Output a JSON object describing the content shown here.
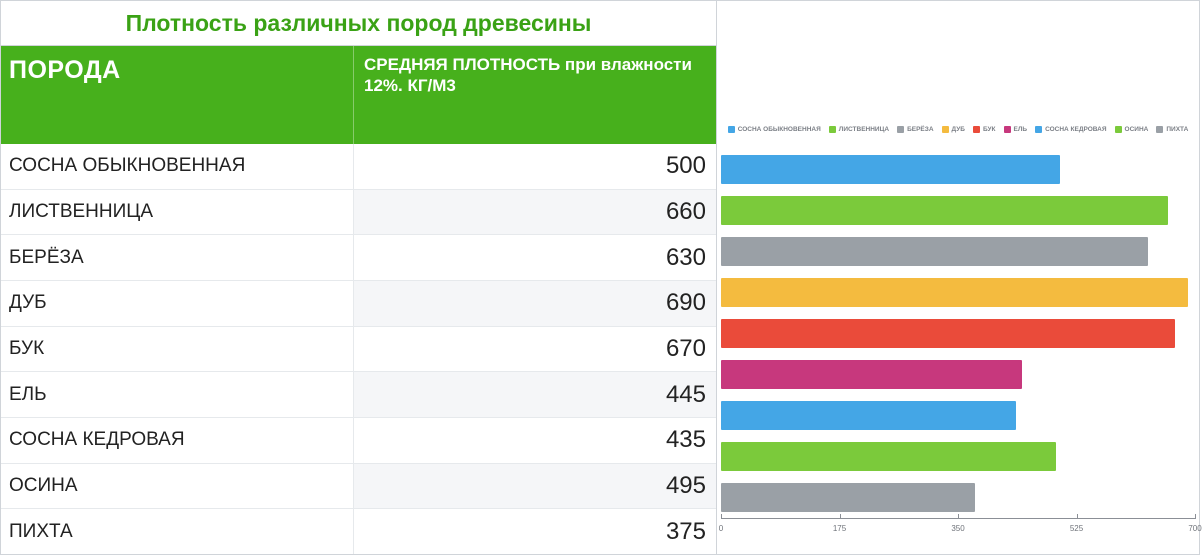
{
  "title": "Плотность различных пород древесины",
  "columns": {
    "c1": "ПОРОДА",
    "c2": "СРЕДНЯЯ ПЛОТНОСТЬ при влажности 12%. КГ/М3"
  },
  "colors": {
    "header_bg": "#47b01c",
    "header_fg": "#ffffff",
    "title_fg": "#3aa215",
    "grid": "#e6e9ec",
    "row_alt_bg": "#f5f6f8",
    "axis": "#8b8f96",
    "tick_label": "#6f737a"
  },
  "rows": [
    {
      "label": "СОСНА ОБЫКНОВЕННАЯ",
      "value": 500,
      "color": "#44a6e6"
    },
    {
      "label": "ЛИСТВЕННИЦА",
      "value": 660,
      "color": "#7bca3b"
    },
    {
      "label": "БЕРЁЗА",
      "value": 630,
      "color": "#9aa0a6"
    },
    {
      "label": "ДУБ",
      "value": 690,
      "color": "#f4bb3f"
    },
    {
      "label": "БУК",
      "value": 670,
      "color": "#ea4b3a"
    },
    {
      "label": "ЕЛЬ",
      "value": 445,
      "color": "#c7387d"
    },
    {
      "label": "СОСНА КЕДРОВАЯ",
      "value": 435,
      "color": "#44a6e6"
    },
    {
      "label": "ОСИНА",
      "value": 495,
      "color": "#7bca3b"
    },
    {
      "label": "ПИХТА",
      "value": 375,
      "color": "#9aa0a6"
    }
  ],
  "chart": {
    "type": "bar-horizontal",
    "xmin": 0,
    "xmax": 700,
    "xticks": [
      0,
      175,
      350,
      525,
      700
    ],
    "legend_fontsize": 6.5,
    "bar_height_ratio": 0.7,
    "background": "#ffffff"
  }
}
